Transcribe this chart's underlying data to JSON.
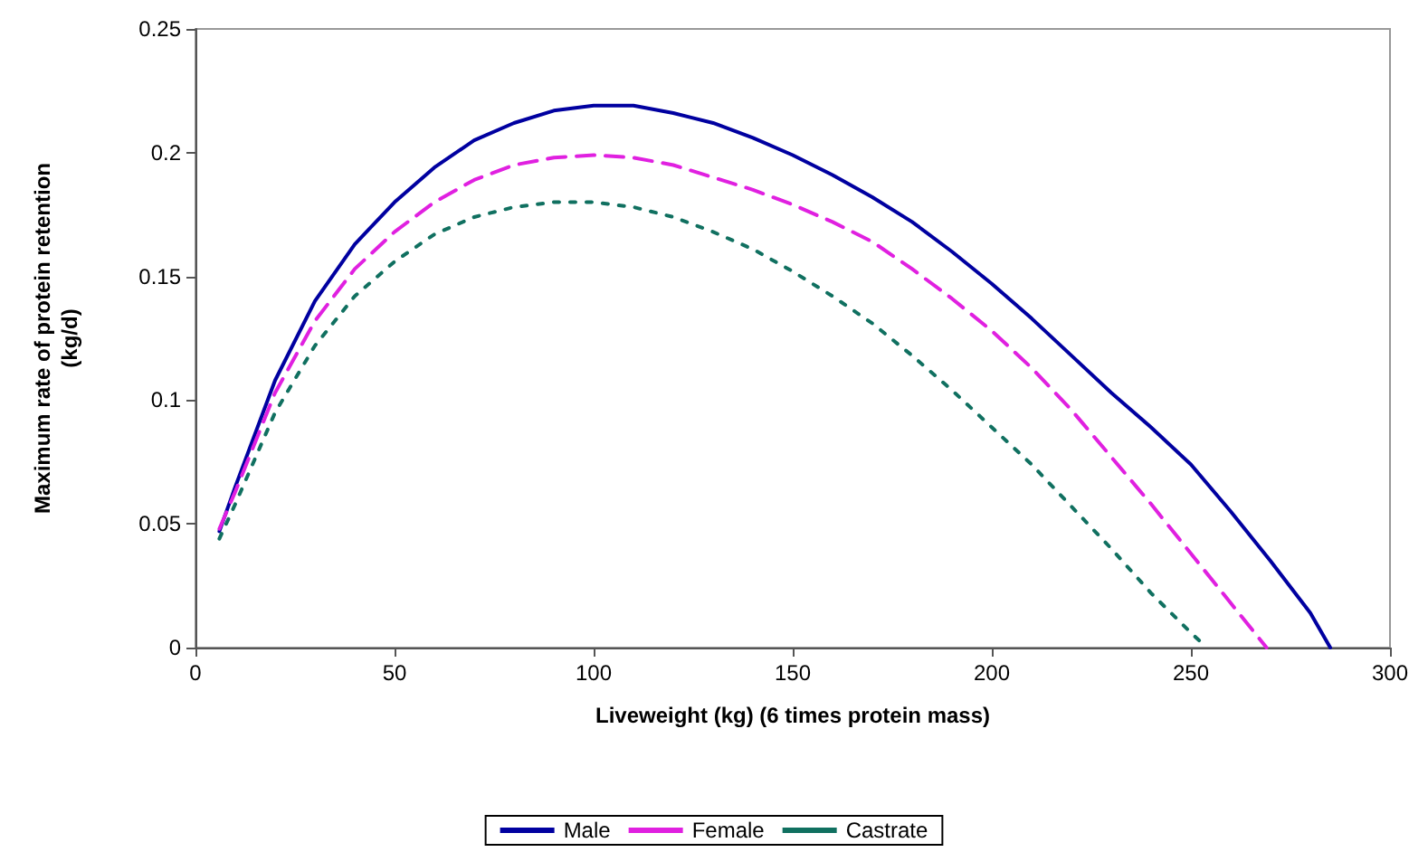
{
  "chart_data": {
    "type": "line",
    "xlabel": "Liveweight (kg) (6 times protein mass)",
    "ylabel": "Maximum rate of protein retention\n(kg/d)",
    "xlim": [
      0,
      300
    ],
    "xticks": [
      0,
      50,
      100,
      150,
      200,
      250,
      300
    ],
    "ylim": [
      0,
      0.25
    ],
    "yticks": [
      0,
      0.05,
      0.1,
      0.15,
      0.2,
      0.25
    ],
    "grid": false,
    "legend": "bottom",
    "marker": "none",
    "series": [
      {
        "name": "Male",
        "color": "#0000a0",
        "line_style": "solid",
        "x": [
          6,
          10,
          20,
          30,
          40,
          50,
          60,
          70,
          80,
          90,
          100,
          110,
          120,
          130,
          140,
          150,
          160,
          170,
          180,
          190,
          200,
          210,
          220,
          230,
          240,
          250,
          260,
          270,
          280,
          285
        ],
        "values": [
          0.047,
          0.065,
          0.108,
          0.14,
          0.163,
          0.18,
          0.194,
          0.205,
          0.212,
          0.217,
          0.219,
          0.219,
          0.216,
          0.212,
          0.206,
          0.199,
          0.191,
          0.182,
          0.172,
          0.16,
          0.147,
          0.133,
          0.118,
          0.103,
          0.089,
          0.074,
          0.055,
          0.035,
          0.014,
          0
        ]
      },
      {
        "name": "Female",
        "color": "#e020e0",
        "line_style": "dashed",
        "x": [
          6,
          10,
          20,
          30,
          40,
          50,
          60,
          70,
          80,
          90,
          100,
          110,
          120,
          130,
          140,
          150,
          160,
          170,
          180,
          190,
          200,
          210,
          220,
          230,
          240,
          250,
          260,
          269
        ],
        "values": [
          0.048,
          0.063,
          0.103,
          0.132,
          0.153,
          0.168,
          0.18,
          0.189,
          0.195,
          0.198,
          0.199,
          0.198,
          0.195,
          0.19,
          0.185,
          0.179,
          0.172,
          0.164,
          0.153,
          0.141,
          0.128,
          0.113,
          0.096,
          0.077,
          0.058,
          0.038,
          0.018,
          0
        ]
      },
      {
        "name": "Castrate",
        "color": "#107060",
        "line_style": "dotted",
        "x": [
          6,
          10,
          20,
          30,
          40,
          50,
          60,
          70,
          80,
          90,
          100,
          110,
          120,
          130,
          140,
          150,
          160,
          170,
          180,
          190,
          200,
          210,
          220,
          230,
          240,
          250,
          254
        ],
        "values": [
          0.044,
          0.058,
          0.095,
          0.122,
          0.142,
          0.156,
          0.167,
          0.174,
          0.178,
          0.18,
          0.18,
          0.178,
          0.174,
          0.168,
          0.161,
          0.152,
          0.142,
          0.131,
          0.118,
          0.104,
          0.089,
          0.074,
          0.057,
          0.04,
          0.022,
          0.006,
          0
        ]
      }
    ]
  }
}
